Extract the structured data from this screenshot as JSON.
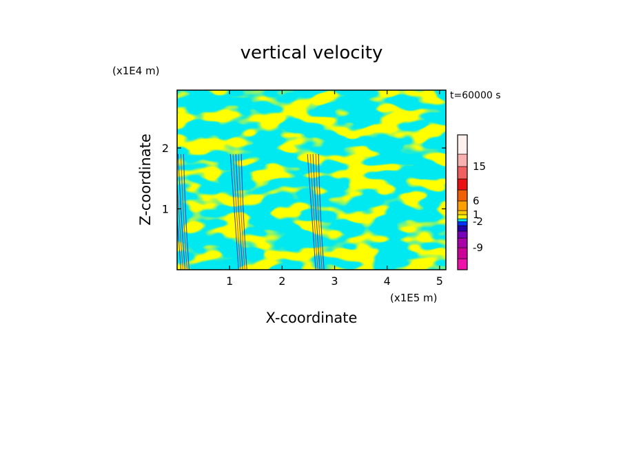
{
  "chart_data": {
    "type": "heatmap",
    "title": "vertical velocity",
    "xlabel": "X-coordinate",
    "ylabel": "Z-coordinate",
    "x_unit": "(x1E5 m)",
    "y_unit": "(x1E4 m)",
    "time_label": "t=60000 s",
    "xlim": [
      0,
      5.12
    ],
    "ylim": [
      0,
      2.95
    ],
    "x_ticks": [
      {
        "value": 1,
        "label": "1"
      },
      {
        "value": 2,
        "label": "2"
      },
      {
        "value": 3,
        "label": "3"
      },
      {
        "value": 4,
        "label": "4"
      },
      {
        "value": 5,
        "label": "5"
      }
    ],
    "y_ticks": [
      {
        "value": 1,
        "label": "1"
      },
      {
        "value": 2,
        "label": "2"
      }
    ],
    "colorbar": {
      "levels": [
        {
          "color": "#ee11aa"
        },
        {
          "color": "#cc0099"
        },
        {
          "color": "#aa00aa"
        },
        {
          "color": "#7700bb"
        },
        {
          "color": "#2200aa"
        },
        {
          "color": "#0033ff"
        },
        {
          "color": "#00e8f0"
        },
        {
          "color": "#ffff00"
        },
        {
          "color": "#ffcc00"
        },
        {
          "color": "#ffa000"
        },
        {
          "color": "#f06000"
        },
        {
          "color": "#e81010"
        },
        {
          "color": "#f06060"
        },
        {
          "color": "#f8b0b0"
        },
        {
          "color": "#fff0f0"
        }
      ],
      "tick_labels": [
        {
          "label": "-9",
          "level_boundary": 2
        },
        {
          "label": "-2",
          "level_boundary": 6
        },
        {
          "label": "1",
          "level_boundary": 8
        },
        {
          "label": "6",
          "level_boundary": 10
        },
        {
          "label": "15",
          "level_boundary": 13
        }
      ]
    },
    "field_colors": {
      "positive": "#ffff00",
      "negative": "#00e8f0",
      "strong_negative": "#2200aa",
      "strong_positive": "#e81010"
    },
    "updraft_columns_x": [
      0.15,
      1.25,
      2.72
    ]
  }
}
